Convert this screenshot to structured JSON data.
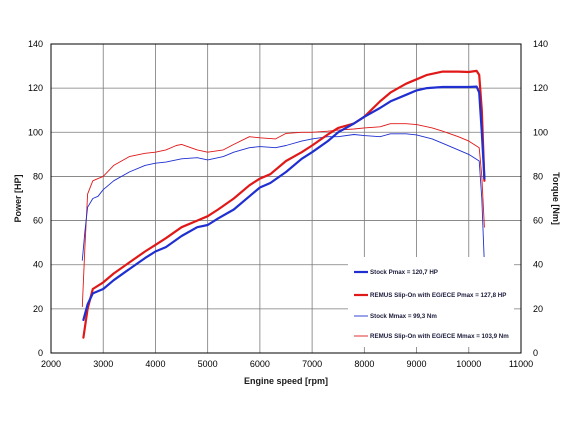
{
  "chart_data": {
    "type": "line",
    "xlabel": "Engine speed [rpm]",
    "ylabel_left": "Power [HP]",
    "ylabel_right": "Torque [Nm]",
    "xlim": [
      2000,
      11000
    ],
    "ylim": [
      0,
      140
    ],
    "x_ticks": [
      2000,
      3000,
      4000,
      5000,
      6000,
      7000,
      8000,
      9000,
      10000,
      11000
    ],
    "y_ticks": [
      0,
      20,
      40,
      60,
      80,
      100,
      120,
      140
    ],
    "grid": true,
    "legend_position": "bottom-right",
    "colors": {
      "blue": "#1f2fd0",
      "red": "#e01818"
    },
    "series": [
      {
        "name": "Stock Pmax = 120,7 HP",
        "color": "#1f2fd0",
        "width": 2.2,
        "points": [
          [
            2620,
            15
          ],
          [
            2700,
            22
          ],
          [
            2800,
            27
          ],
          [
            3000,
            29
          ],
          [
            3200,
            33
          ],
          [
            3500,
            38
          ],
          [
            3800,
            43
          ],
          [
            4000,
            46
          ],
          [
            4200,
            48
          ],
          [
            4500,
            53
          ],
          [
            4800,
            57
          ],
          [
            5000,
            58
          ],
          [
            5200,
            61
          ],
          [
            5500,
            65
          ],
          [
            5800,
            71
          ],
          [
            6000,
            75
          ],
          [
            6200,
            77
          ],
          [
            6500,
            82
          ],
          [
            6800,
            88
          ],
          [
            7000,
            91
          ],
          [
            7300,
            96
          ],
          [
            7500,
            100
          ],
          [
            7800,
            104
          ],
          [
            8000,
            107
          ],
          [
            8300,
            111
          ],
          [
            8500,
            114
          ],
          [
            8800,
            117
          ],
          [
            9000,
            119
          ],
          [
            9200,
            120
          ],
          [
            9500,
            120.5
          ],
          [
            9800,
            120.5
          ],
          [
            10000,
            120.5
          ],
          [
            10150,
            120.7
          ],
          [
            10200,
            118
          ],
          [
            10250,
            100
          ],
          [
            10300,
            79
          ]
        ]
      },
      {
        "name": "REMUS Slip-On with EG/ECE Pmax = 127,8 HP",
        "color": "#e01818",
        "width": 2.2,
        "points": [
          [
            2620,
            7
          ],
          [
            2700,
            20
          ],
          [
            2800,
            29
          ],
          [
            3000,
            32
          ],
          [
            3200,
            36
          ],
          [
            3500,
            41
          ],
          [
            3800,
            46
          ],
          [
            4000,
            49
          ],
          [
            4200,
            52
          ],
          [
            4500,
            57
          ],
          [
            4800,
            60
          ],
          [
            5000,
            62
          ],
          [
            5200,
            65
          ],
          [
            5500,
            70
          ],
          [
            5800,
            76
          ],
          [
            6000,
            79
          ],
          [
            6200,
            81
          ],
          [
            6500,
            87
          ],
          [
            6800,
            91
          ],
          [
            7000,
            94
          ],
          [
            7300,
            99
          ],
          [
            7500,
            102
          ],
          [
            7800,
            104
          ],
          [
            8000,
            107
          ],
          [
            8300,
            114
          ],
          [
            8500,
            118
          ],
          [
            8800,
            122
          ],
          [
            9000,
            124
          ],
          [
            9200,
            126
          ],
          [
            9500,
            127.5
          ],
          [
            9800,
            127.5
          ],
          [
            10000,
            127.3
          ],
          [
            10150,
            127.8
          ],
          [
            10200,
            126
          ],
          [
            10250,
            110
          ],
          [
            10300,
            78
          ]
        ]
      },
      {
        "name": "Stock Mmax = 99,3 Nm",
        "color": "#1f2fd0",
        "width": 0.9,
        "points": [
          [
            2600,
            42
          ],
          [
            2650,
            55
          ],
          [
            2700,
            66
          ],
          [
            2800,
            70
          ],
          [
            2900,
            71
          ],
          [
            3000,
            74
          ],
          [
            3200,
            78
          ],
          [
            3500,
            82
          ],
          [
            3800,
            85
          ],
          [
            4000,
            86
          ],
          [
            4200,
            86.5
          ],
          [
            4500,
            88
          ],
          [
            4800,
            88.5
          ],
          [
            5000,
            87.5
          ],
          [
            5300,
            89
          ],
          [
            5500,
            91
          ],
          [
            5800,
            93
          ],
          [
            6000,
            93.5
          ],
          [
            6300,
            93
          ],
          [
            6500,
            94
          ],
          [
            6800,
            96
          ],
          [
            7000,
            97
          ],
          [
            7300,
            98
          ],
          [
            7500,
            98
          ],
          [
            7800,
            99
          ],
          [
            8000,
            98.5
          ],
          [
            8300,
            98
          ],
          [
            8500,
            99.3
          ],
          [
            8800,
            99.3
          ],
          [
            9000,
            98.8
          ],
          [
            9300,
            97
          ],
          [
            9500,
            95
          ],
          [
            9800,
            92
          ],
          [
            10000,
            90
          ],
          [
            10200,
            87
          ],
          [
            10250,
            70
          ],
          [
            10300,
            40
          ]
        ]
      },
      {
        "name": "REMUS Slip-On with EG/ECE Mmax = 103,9 Nm",
        "color": "#e01818",
        "width": 0.9,
        "points": [
          [
            2600,
            21
          ],
          [
            2650,
            48
          ],
          [
            2700,
            72
          ],
          [
            2800,
            78
          ],
          [
            2900,
            79
          ],
          [
            3000,
            80
          ],
          [
            3200,
            85
          ],
          [
            3500,
            89
          ],
          [
            3800,
            90.5
          ],
          [
            4000,
            91
          ],
          [
            4200,
            92
          ],
          [
            4400,
            94
          ],
          [
            4500,
            94.5
          ],
          [
            4800,
            92
          ],
          [
            5000,
            91
          ],
          [
            5300,
            92
          ],
          [
            5500,
            94.5
          ],
          [
            5800,
            98
          ],
          [
            6000,
            97.5
          ],
          [
            6300,
            97
          ],
          [
            6500,
            99.5
          ],
          [
            6800,
            100
          ],
          [
            7000,
            100
          ],
          [
            7300,
            100.5
          ],
          [
            7500,
            101
          ],
          [
            7800,
            101.5
          ],
          [
            8000,
            102
          ],
          [
            8300,
            102.5
          ],
          [
            8500,
            103.9
          ],
          [
            8800,
            103.9
          ],
          [
            9000,
            103.5
          ],
          [
            9300,
            102
          ],
          [
            9500,
            100.5
          ],
          [
            9800,
            98
          ],
          [
            10000,
            96
          ],
          [
            10200,
            93
          ],
          [
            10250,
            80
          ],
          [
            10300,
            57
          ]
        ]
      }
    ]
  }
}
